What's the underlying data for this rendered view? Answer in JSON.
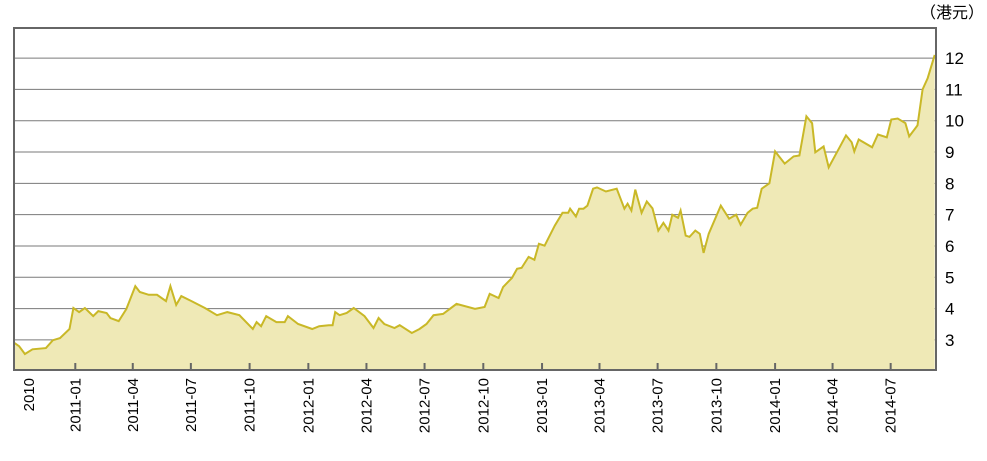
{
  "chart_data": {
    "type": "area",
    "title": "",
    "xlabel": "",
    "ylabel": "",
    "unit_label": "（港元）",
    "xlim": [
      "2010-09-27",
      "2014-09-10"
    ],
    "ylim": [
      2.04,
      12.96
    ],
    "grid": {
      "horizontal": true,
      "vertical": false
    },
    "y_axis_side": "right",
    "yticks": [
      3,
      4,
      5,
      6,
      7,
      8,
      9,
      10,
      11,
      12
    ],
    "xticks": [
      {
        "date": "2010-10-01",
        "label": "2010",
        "mark": false
      },
      {
        "date": "2011-01-01",
        "label": "2011-01",
        "mark": true
      },
      {
        "date": "2011-04-01",
        "label": "2011-04",
        "mark": true
      },
      {
        "date": "2011-07-01",
        "label": "2011-07",
        "mark": true
      },
      {
        "date": "2011-10-01",
        "label": "2011-10",
        "mark": true
      },
      {
        "date": "2012-01-01",
        "label": "2012-01",
        "mark": true
      },
      {
        "date": "2012-04-01",
        "label": "2012-04",
        "mark": true
      },
      {
        "date": "2012-07-01",
        "label": "2012-07",
        "mark": true
      },
      {
        "date": "2012-10-01",
        "label": "2012-10",
        "mark": true
      },
      {
        "date": "2013-01-01",
        "label": "2013-01",
        "mark": true
      },
      {
        "date": "2013-04-01",
        "label": "2013-04",
        "mark": true
      },
      {
        "date": "2013-07-01",
        "label": "2013-07",
        "mark": true
      },
      {
        "date": "2013-10-01",
        "label": "2013-10",
        "mark": true
      },
      {
        "date": "2014-01-01",
        "label": "2014-01",
        "mark": true
      },
      {
        "date": "2014-04-01",
        "label": "2014-04",
        "mark": true
      },
      {
        "date": "2014-07-01",
        "label": "2014-07",
        "mark": true
      }
    ],
    "colors": {
      "line": "#c9b827",
      "fill": "#efe9b6",
      "grid": "#7a7a7a",
      "axis": "#666666"
    },
    "series": [
      {
        "points": [
          [
            "2010-09-28",
            2.9
          ],
          [
            "2010-10-05",
            2.8
          ],
          [
            "2010-10-14",
            2.55
          ],
          [
            "2010-10-26",
            2.7
          ],
          [
            "2010-11-16",
            2.74
          ],
          [
            "2010-11-27",
            2.99
          ],
          [
            "2010-12-08",
            3.06
          ],
          [
            "2010-12-23",
            3.35
          ],
          [
            "2010-12-29",
            4.02
          ],
          [
            "2011-01-07",
            3.89
          ],
          [
            "2011-01-16",
            4.02
          ],
          [
            "2011-01-29",
            3.76
          ],
          [
            "2011-02-06",
            3.92
          ],
          [
            "2011-02-19",
            3.86
          ],
          [
            "2011-02-25",
            3.7
          ],
          [
            "2011-03-10",
            3.6
          ],
          [
            "2011-03-22",
            3.99
          ],
          [
            "2011-04-05",
            4.72
          ],
          [
            "2011-04-12",
            4.53
          ],
          [
            "2011-04-26",
            4.44
          ],
          [
            "2011-05-09",
            4.44
          ],
          [
            "2011-05-23",
            4.24
          ],
          [
            "2011-05-30",
            4.72
          ],
          [
            "2011-06-08",
            4.12
          ],
          [
            "2011-06-16",
            4.4
          ],
          [
            "2011-07-02",
            4.24
          ],
          [
            "2011-07-23",
            4.02
          ],
          [
            "2011-08-11",
            3.79
          ],
          [
            "2011-08-27",
            3.89
          ],
          [
            "2011-09-15",
            3.79
          ],
          [
            "2011-10-06",
            3.35
          ],
          [
            "2011-10-12",
            3.57
          ],
          [
            "2011-10-19",
            3.44
          ],
          [
            "2011-10-27",
            3.76
          ],
          [
            "2011-11-12",
            3.57
          ],
          [
            "2011-11-25",
            3.57
          ],
          [
            "2011-11-30",
            3.76
          ],
          [
            "2011-12-16",
            3.51
          ],
          [
            "2012-01-07",
            3.35
          ],
          [
            "2012-01-18",
            3.44
          ],
          [
            "2012-02-02",
            3.47
          ],
          [
            "2012-02-08",
            3.47
          ],
          [
            "2012-02-12",
            3.89
          ],
          [
            "2012-02-19",
            3.79
          ],
          [
            "2012-03-01",
            3.86
          ],
          [
            "2012-03-12",
            4.02
          ],
          [
            "2012-03-29",
            3.76
          ],
          [
            "2012-04-12",
            3.38
          ],
          [
            "2012-04-20",
            3.7
          ],
          [
            "2012-04-29",
            3.51
          ],
          [
            "2012-05-15",
            3.38
          ],
          [
            "2012-05-23",
            3.47
          ],
          [
            "2012-06-11",
            3.22
          ],
          [
            "2012-06-23",
            3.35
          ],
          [
            "2012-07-04",
            3.51
          ],
          [
            "2012-07-15",
            3.79
          ],
          [
            "2012-07-30",
            3.83
          ],
          [
            "2012-08-20",
            4.15
          ],
          [
            "2012-09-18",
            3.99
          ],
          [
            "2012-10-03",
            4.05
          ],
          [
            "2012-10-11",
            4.47
          ],
          [
            "2012-10-25",
            4.34
          ],
          [
            "2012-11-01",
            4.69
          ],
          [
            "2012-11-15",
            4.98
          ],
          [
            "2012-11-23",
            5.27
          ],
          [
            "2012-11-30",
            5.3
          ],
          [
            "2012-12-11",
            5.65
          ],
          [
            "2012-12-20",
            5.56
          ],
          [
            "2012-12-27",
            6.07
          ],
          [
            "2013-01-05",
            6.01
          ],
          [
            "2013-01-21",
            6.65
          ],
          [
            "2013-02-02",
            7.06
          ],
          [
            "2013-02-11",
            7.06
          ],
          [
            "2013-02-14",
            7.19
          ],
          [
            "2013-02-23",
            6.94
          ],
          [
            "2013-02-28",
            7.19
          ],
          [
            "2013-03-07",
            7.19
          ],
          [
            "2013-03-13",
            7.29
          ],
          [
            "2013-03-22",
            7.83
          ],
          [
            "2013-03-28",
            7.87
          ],
          [
            "2013-04-11",
            7.74
          ],
          [
            "2013-04-28",
            7.83
          ],
          [
            "2013-05-10",
            7.19
          ],
          [
            "2013-05-15",
            7.35
          ],
          [
            "2013-05-21",
            7.13
          ],
          [
            "2013-05-27",
            7.8
          ],
          [
            "2013-06-06",
            7.06
          ],
          [
            "2013-06-14",
            7.42
          ],
          [
            "2013-06-23",
            7.2
          ],
          [
            "2013-07-02",
            6.49
          ],
          [
            "2013-07-10",
            6.74
          ],
          [
            "2013-07-18",
            6.49
          ],
          [
            "2013-07-24",
            7.0
          ],
          [
            "2013-08-02",
            6.9
          ],
          [
            "2013-08-06",
            7.13
          ],
          [
            "2013-08-14",
            6.33
          ],
          [
            "2013-08-20",
            6.29
          ],
          [
            "2013-08-29",
            6.49
          ],
          [
            "2013-09-05",
            6.39
          ],
          [
            "2013-09-11",
            5.78
          ],
          [
            "2013-09-19",
            6.39
          ],
          [
            "2013-10-08",
            7.29
          ],
          [
            "2013-10-21",
            6.87
          ],
          [
            "2013-11-01",
            7.0
          ],
          [
            "2013-11-08",
            6.68
          ],
          [
            "2013-11-19",
            7.06
          ],
          [
            "2013-11-27",
            7.19
          ],
          [
            "2013-12-04",
            7.22
          ],
          [
            "2013-12-11",
            7.83
          ],
          [
            "2013-12-23",
            8.0
          ],
          [
            "2014-01-01",
            9.02
          ],
          [
            "2014-01-16",
            8.63
          ],
          [
            "2014-01-30",
            8.86
          ],
          [
            "2014-02-08",
            8.89
          ],
          [
            "2014-02-19",
            10.14
          ],
          [
            "2014-02-28",
            9.92
          ],
          [
            "2014-03-05",
            8.99
          ],
          [
            "2014-03-18",
            9.18
          ],
          [
            "2014-03-26",
            8.51
          ],
          [
            "2014-04-12",
            9.15
          ],
          [
            "2014-04-22",
            9.53
          ],
          [
            "2014-05-01",
            9.31
          ],
          [
            "2014-05-05",
            9.02
          ],
          [
            "2014-05-12",
            9.4
          ],
          [
            "2014-06-02",
            9.15
          ],
          [
            "2014-06-11",
            9.56
          ],
          [
            "2014-06-25",
            9.47
          ],
          [
            "2014-07-02",
            10.04
          ],
          [
            "2014-07-12",
            10.07
          ],
          [
            "2014-07-24",
            9.92
          ],
          [
            "2014-07-30",
            9.5
          ],
          [
            "2014-08-12",
            9.85
          ],
          [
            "2014-08-20",
            11.0
          ],
          [
            "2014-08-28",
            11.36
          ],
          [
            "2014-09-08",
            12.1
          ]
        ]
      }
    ]
  }
}
